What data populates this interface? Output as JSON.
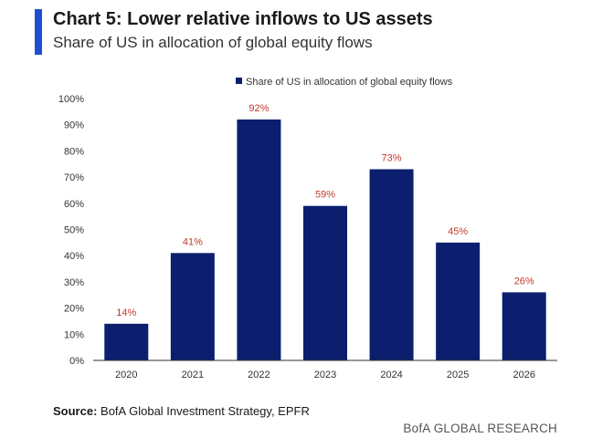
{
  "header": {
    "title": "Chart 5: Lower relative inflows to US assets",
    "subtitle": "Share of US in allocation of global equity flows"
  },
  "footer": {
    "source_label": "Source:",
    "source_text": "BofA Global Investment Strategy, EPFR",
    "brand": "BofA GLOBAL RESEARCH"
  },
  "colors": {
    "accent": "#1f4fd1",
    "bar": "#0b1f6e",
    "data_label": "#c0392b"
  },
  "chart_data": {
    "type": "bar",
    "categories": [
      "2020",
      "2021",
      "2022",
      "2023",
      "2024",
      "2025",
      "2026"
    ],
    "series": [
      {
        "name": "Share of US in allocation of global equity flows",
        "values": [
          14,
          41,
          92,
          59,
          73,
          45,
          26
        ]
      }
    ],
    "data_labels": [
      "14%",
      "41%",
      "92%",
      "59%",
      "73%",
      "45%",
      "26%"
    ],
    "y_ticks": [
      "0%",
      "10%",
      "20%",
      "30%",
      "40%",
      "50%",
      "60%",
      "70%",
      "80%",
      "90%",
      "100%"
    ],
    "ylim": [
      0,
      100
    ],
    "grid": false,
    "legend_position": "top-center"
  }
}
